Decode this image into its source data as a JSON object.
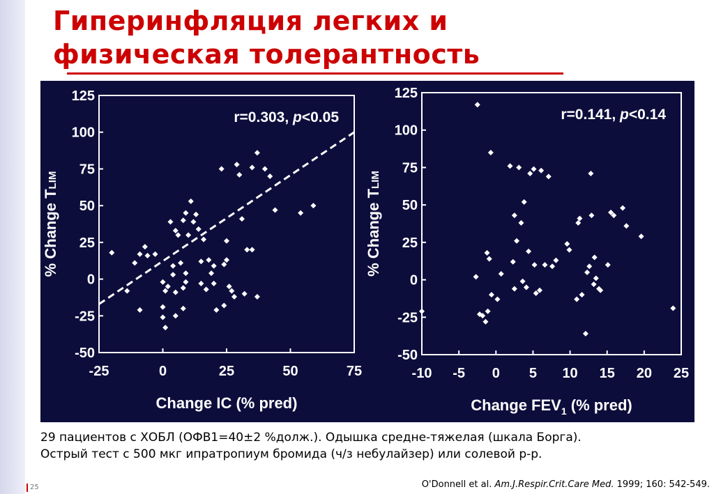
{
  "slide": {
    "title_line1": "Гиперинфляция легких и",
    "title_line2": "физическая толерантность",
    "caption_line1": "29 пациентов с ХОБЛ (ОФВ1=40±2 %долж.). Одышка средне-тяжелая (шкала Борга).",
    "caption_line2": "Острый тест с 500 мкг ипратропиум бромида (ч/з небулайзер) или солевой р-р.",
    "slide_number": "25",
    "citation_authors": "O'Donnell et al.",
    "citation_journal": "Am.J.Respir.Crit.Care Med.",
    "citation_details": "1999; 160: 542-549."
  },
  "colors": {
    "title": "#cc0000",
    "panel_bg": "#0d0d3c",
    "chart_fg": "#ffffff"
  },
  "chart_data": [
    {
      "type": "scatter",
      "xlabel": "Change IC (% pred)",
      "ylabel_main": "% Change T",
      "ylabel_sub": "LIM",
      "annotation_prefix": "r=0.303, ",
      "annotation_p": "p",
      "annotation_suffix": "<0.05",
      "xlim": [
        -25,
        75
      ],
      "ylim": [
        -50,
        125
      ],
      "xticks": [
        -25,
        0,
        25,
        50,
        75
      ],
      "yticks": [
        -50,
        -25,
        0,
        25,
        50,
        75,
        100,
        125
      ],
      "regression": {
        "x": [
          -25,
          75
        ],
        "y": [
          -17,
          100
        ]
      },
      "points": [
        [
          -20,
          18
        ],
        [
          -14,
          -8
        ],
        [
          -11,
          11
        ],
        [
          -9,
          17
        ],
        [
          -9,
          -21
        ],
        [
          -7,
          22
        ],
        [
          -6,
          16
        ],
        [
          -3,
          17
        ],
        [
          0,
          -2
        ],
        [
          0,
          -19
        ],
        [
          0,
          -26
        ],
        [
          1,
          -33
        ],
        [
          1,
          -8
        ],
        [
          2,
          -5
        ],
        [
          3,
          39
        ],
        [
          4,
          9
        ],
        [
          4,
          3
        ],
        [
          5,
          33
        ],
        [
          5,
          -9
        ],
        [
          5,
          -25
        ],
        [
          6,
          30
        ],
        [
          7,
          11
        ],
        [
          8,
          40
        ],
        [
          8,
          -6
        ],
        [
          8,
          -20
        ],
        [
          9,
          -2
        ],
        [
          9,
          4
        ],
        [
          9,
          45
        ],
        [
          10,
          30
        ],
        [
          11,
          53
        ],
        [
          12,
          39
        ],
        [
          13,
          44
        ],
        [
          14,
          34
        ],
        [
          15,
          -3
        ],
        [
          15,
          12
        ],
        [
          16,
          27
        ],
        [
          17,
          -7
        ],
        [
          18,
          13
        ],
        [
          19,
          4
        ],
        [
          20,
          9
        ],
        [
          20,
          -3
        ],
        [
          21,
          -21
        ],
        [
          23,
          75
        ],
        [
          24,
          10
        ],
        [
          24,
          -18
        ],
        [
          25,
          13
        ],
        [
          25,
          26
        ],
        [
          26,
          -5
        ],
        [
          27,
          -8
        ],
        [
          28,
          -12
        ],
        [
          29,
          78
        ],
        [
          30,
          71
        ],
        [
          31,
          41
        ],
        [
          32,
          -10
        ],
        [
          33,
          20
        ],
        [
          35,
          20
        ],
        [
          35,
          76
        ],
        [
          37,
          -12
        ],
        [
          37,
          86
        ],
        [
          40,
          75
        ],
        [
          42,
          70
        ],
        [
          44,
          47
        ],
        [
          54,
          45
        ],
        [
          59,
          50
        ]
      ]
    },
    {
      "type": "scatter",
      "xlabel_main": "Change FEV",
      "xlabel_sub": "1",
      "xlabel_suffix": " (% pred)",
      "ylabel_main": "% Change T",
      "ylabel_sub": "LIM",
      "annotation_prefix": "r=0.141, ",
      "annotation_p": "p",
      "annotation_suffix": "<0.14",
      "xlim": [
        -10,
        25
      ],
      "ylim": [
        -50,
        125
      ],
      "xticks": [
        -10,
        -5,
        0,
        5,
        10,
        15,
        20,
        25
      ],
      "yticks": [
        -50,
        -25,
        0,
        25,
        50,
        75,
        100,
        125
      ],
      "points": [
        [
          -10,
          -21
        ],
        [
          -2.5,
          117
        ],
        [
          -2.7,
          2
        ],
        [
          -2.2,
          -23
        ],
        [
          -1.8,
          -24
        ],
        [
          -1.4,
          -28
        ],
        [
          -1.2,
          18
        ],
        [
          -1.1,
          -21
        ],
        [
          -0.9,
          14
        ],
        [
          -0.6,
          -10
        ],
        [
          -0.7,
          85
        ],
        [
          0.2,
          -13
        ],
        [
          0.7,
          4
        ],
        [
          1.9,
          76
        ],
        [
          2.3,
          12
        ],
        [
          2.5,
          -6
        ],
        [
          2.5,
          43
        ],
        [
          2.8,
          26
        ],
        [
          3.1,
          75
        ],
        [
          3.4,
          38
        ],
        [
          3.6,
          -1
        ],
        [
          3.8,
          52
        ],
        [
          4.1,
          -5
        ],
        [
          4.4,
          19
        ],
        [
          4.6,
          71
        ],
        [
          5.1,
          74
        ],
        [
          5.2,
          10
        ],
        [
          5.4,
          -9
        ],
        [
          5.9,
          -7
        ],
        [
          6.1,
          73
        ],
        [
          6.6,
          10
        ],
        [
          7.1,
          69
        ],
        [
          7.6,
          9
        ],
        [
          8.1,
          13
        ],
        [
          9.6,
          24
        ],
        [
          9.9,
          20
        ],
        [
          10.9,
          -13
        ],
        [
          11.1,
          38
        ],
        [
          11.3,
          41
        ],
        [
          11.6,
          -10
        ],
        [
          12.1,
          -36
        ],
        [
          12.3,
          5
        ],
        [
          12.6,
          9
        ],
        [
          12.8,
          71
        ],
        [
          12.9,
          43
        ],
        [
          13.2,
          -3
        ],
        [
          13.3,
          15
        ],
        [
          13.5,
          1
        ],
        [
          13.9,
          -6
        ],
        [
          14.1,
          -7
        ],
        [
          15.1,
          10
        ],
        [
          15.5,
          45
        ],
        [
          15.9,
          43
        ],
        [
          17.1,
          48
        ],
        [
          17.6,
          36
        ],
        [
          19.6,
          29
        ],
        [
          23.9,
          -19
        ]
      ]
    }
  ]
}
